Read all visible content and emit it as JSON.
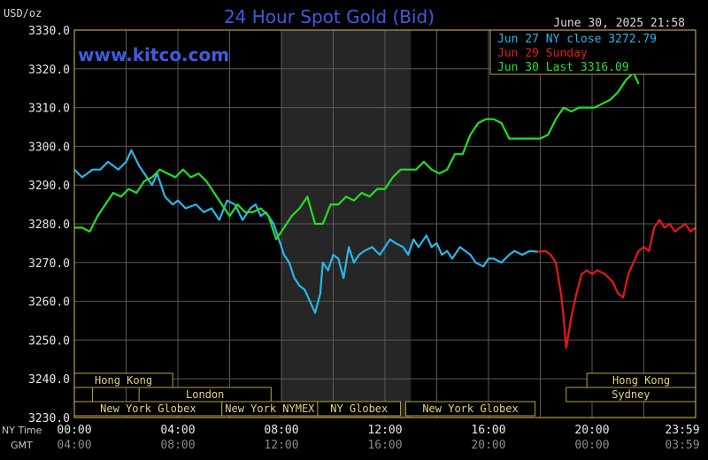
{
  "header": {
    "title": "24 Hour Spot Gold (Bid)",
    "unit": "USD/oz",
    "timestamp": "June 30, 2025 21:58",
    "website": "www.kitco.com"
  },
  "colors": {
    "background": "#000000",
    "grid": "#5a5a5a",
    "frame": "#b8a048",
    "title": "#3f5be0",
    "jun27": "#29b6e8",
    "jun29": "#e81818",
    "jun30": "#22e022",
    "sessionFill": "#000000",
    "sessionBorder": "#b8a048",
    "sessionText": "#e6d27a",
    "shade": "#262626"
  },
  "chart_data": {
    "type": "line",
    "title": "24 Hour Spot Gold (Bid)",
    "ylabel": "USD/oz",
    "ylim": [
      3230,
      3330
    ],
    "xlim": [
      0,
      24
    ],
    "grid": true,
    "legend_position": "top-right",
    "y_ticks": [
      "3330.0",
      "3320.0",
      "3310.0",
      "3300.0",
      "3290.0",
      "3280.0",
      "3270.0",
      "3260.0",
      "3250.0",
      "3240.0",
      "3230.0"
    ],
    "x_ticks_ny": [
      "00:00",
      "04:00",
      "08:00",
      "12:00",
      "16:00",
      "20:00",
      "23:59"
    ],
    "x_ticks_gmt": [
      "04:00",
      "08:00",
      "12:00",
      "16:00",
      "20:00",
      "00:00",
      "03:59"
    ],
    "x_axis_label_ny": "NY Time",
    "x_axis_label_gmt": "GMT",
    "shaded_hours": [
      8,
      13
    ],
    "legend": [
      {
        "label": "Jun 27 NY close 3272.79",
        "color": "#29b6e8"
      },
      {
        "label": "Jun 29 Sunday",
        "color": "#e81818"
      },
      {
        "label": "Jun 30 Last 3316.09",
        "color": "#22e022"
      }
    ],
    "series": [
      {
        "name": "Jun 27",
        "color": "#29b6e8",
        "x": [
          0,
          0.3,
          0.7,
          1,
          1.3,
          1.7,
          2,
          2.2,
          2.5,
          2.8,
          3,
          3.2,
          3.5,
          3.8,
          4,
          4.3,
          4.7,
          5,
          5.3,
          5.6,
          5.9,
          6.2,
          6.5,
          6.8,
          7,
          7.2,
          7.4,
          7.7,
          7.9,
          8.1,
          8.3,
          8.5,
          8.7,
          8.9,
          9.1,
          9.3,
          9.5,
          9.6,
          9.8,
          10,
          10.2,
          10.4,
          10.6,
          10.8,
          11,
          11.2,
          11.5,
          11.8,
          12,
          12.2,
          12.4,
          12.7,
          12.9,
          13.1,
          13.3,
          13.6,
          13.8,
          14,
          14.2,
          14.4,
          14.6,
          14.9,
          15.1,
          15.3,
          15.5,
          15.8,
          16,
          16.2,
          16.5,
          16.8,
          17,
          17.3,
          17.6,
          17.9
        ],
        "values": [
          3294,
          3292,
          3294,
          3294,
          3296,
          3294,
          3296,
          3299,
          3295,
          3292,
          3290,
          3293,
          3287,
          3285,
          3286,
          3284,
          3285,
          3283,
          3284,
          3281,
          3286,
          3285,
          3281,
          3284,
          3285,
          3282,
          3283,
          3280,
          3276,
          3272,
          3270,
          3266,
          3264,
          3263,
          3260,
          3257,
          3262,
          3270,
          3268,
          3272,
          3271,
          3266,
          3274,
          3270,
          3272,
          3273,
          3274,
          3272,
          3274,
          3276,
          3275,
          3274,
          3272,
          3276,
          3274,
          3277,
          3274,
          3275,
          3272,
          3273,
          3271,
          3274,
          3273,
          3272,
          3270,
          3269,
          3271,
          3271,
          3270,
          3272,
          3273,
          3272,
          3273,
          3272.79
        ]
      },
      {
        "name": "Jun 29",
        "color": "#e81818",
        "x": [
          17.9,
          18.2,
          18.4,
          18.6,
          18.8,
          18.9,
          19,
          19.2,
          19.4,
          19.6,
          19.8,
          20,
          20.2,
          20.5,
          20.8,
          21,
          21.2,
          21.4,
          21.6,
          21.8,
          22,
          22.2,
          22.4,
          22.6,
          22.8,
          23,
          23.2,
          23.4,
          23.6,
          23.8,
          24
        ],
        "values": [
          3272.79,
          3273,
          3272,
          3270,
          3262,
          3256,
          3248,
          3256,
          3262,
          3267,
          3268,
          3267,
          3268,
          3267,
          3265,
          3262,
          3261,
          3267,
          3270,
          3273,
          3274,
          3273,
          3279,
          3281,
          3279,
          3280,
          3278,
          3279,
          3280,
          3278,
          3279
        ]
      },
      {
        "name": "Jun 30",
        "color": "#22e022",
        "x": [
          0,
          0.3,
          0.6,
          0.9,
          1.2,
          1.5,
          1.8,
          2.1,
          2.4,
          2.7,
          3,
          3.3,
          3.6,
          3.9,
          4.2,
          4.5,
          4.8,
          5.1,
          5.4,
          5.7,
          6,
          6.3,
          6.6,
          6.9,
          7.2,
          7.5,
          7.8,
          8.1,
          8.4,
          8.7,
          9,
          9.3,
          9.6,
          9.9,
          10.2,
          10.5,
          10.8,
          11.1,
          11.4,
          11.7,
          12,
          12.3,
          12.6,
          12.9,
          13.2,
          13.5,
          13.8,
          14.1,
          14.4,
          14.7,
          15,
          15.3,
          15.6,
          15.9,
          16.2,
          16.5,
          16.8,
          17.1,
          17.4,
          17.7,
          18,
          18.3,
          18.6,
          18.9,
          19.2,
          19.5,
          19.8,
          20.1,
          20.4,
          20.7,
          21,
          21.3,
          21.6,
          21.8
        ],
        "values": [
          3279,
          3279,
          3278,
          3282,
          3285,
          3288,
          3287,
          3289,
          3288,
          3291,
          3292,
          3294,
          3293,
          3292,
          3294,
          3292,
          3293,
          3291,
          3288,
          3285,
          3282,
          3285,
          3283,
          3283,
          3284,
          3282,
          3276,
          3279,
          3282,
          3284,
          3287,
          3280,
          3280,
          3285,
          3285,
          3287,
          3286,
          3288,
          3287,
          3289,
          3289,
          3292,
          3294,
          3294,
          3294,
          3296,
          3294,
          3293,
          3294,
          3298,
          3298,
          3303,
          3306,
          3307,
          3307,
          3306,
          3302,
          3302,
          3302,
          3302,
          3302,
          3303,
          3307,
          3310,
          3309,
          3310,
          3310,
          3310,
          3311,
          3312,
          3314,
          3317,
          3319,
          3316.09
        ]
      }
    ]
  },
  "sessions": {
    "row1": [
      {
        "label": "Hong Kong",
        "start": 0,
        "end": 3.8
      },
      {
        "label": "Hong Kong",
        "start": 19.8,
        "end": 24
      }
    ],
    "row2": [
      {
        "label": "",
        "start": 0,
        "end": 0.7
      },
      {
        "label": "London",
        "start": 2.5,
        "end": 7.6
      },
      {
        "label": "Sydney",
        "start": 19.0,
        "end": 24
      }
    ],
    "row3": [
      {
        "label": "New York Globex",
        "start": 0,
        "end": 5.7
      },
      {
        "label": "New York NYMEX",
        "start": 5.7,
        "end": 9.4
      },
      {
        "label": "NY Globex",
        "start": 9.4,
        "end": 12.6
      },
      {
        "label": "New York Globex",
        "start": 12.8,
        "end": 17.8
      }
    ]
  }
}
